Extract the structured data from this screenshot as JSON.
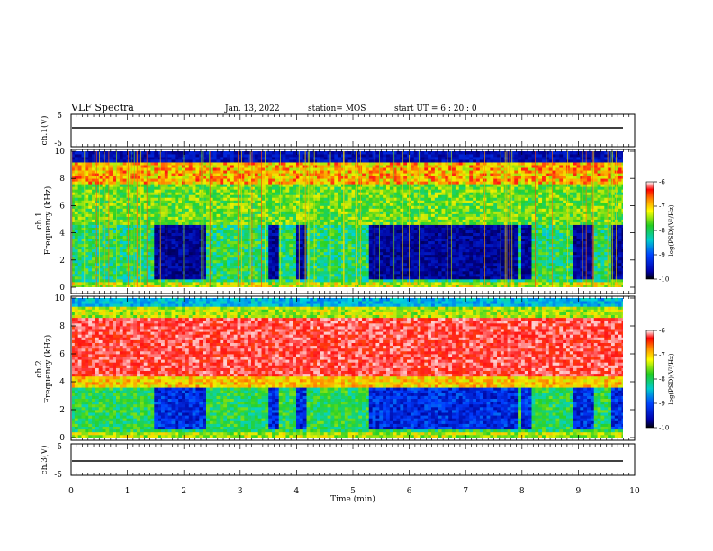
{
  "header": {
    "title": "VLF Spectra",
    "date": "Jan. 13, 2022",
    "station": "station= MOS",
    "start": "start UT =  6 : 20 : 0"
  },
  "chart_data": [
    {
      "type": "line",
      "name": "ch1-waveform",
      "ylabel": "ch.1(V)",
      "ylim": [
        -5,
        5
      ],
      "yticks": [
        "5",
        "-5"
      ],
      "x": [
        0,
        10
      ],
      "values": [
        0,
        0
      ]
    },
    {
      "type": "heatmap",
      "name": "ch1-spectrogram",
      "ylabel": "ch.1\nFrequency (kHz)",
      "ylim": [
        0,
        10
      ],
      "yticks": [
        "0",
        "2",
        "4",
        "6",
        "8",
        "10"
      ],
      "xlim": [
        0,
        9.83
      ],
      "colorbar": {
        "label": "log(PSD)(V²/Hz)",
        "range": [
          -10,
          -6
        ],
        "ticks": [
          "-6",
          "-7",
          "-8",
          "-9",
          "-10"
        ]
      },
      "quiet_intervals_min": [
        [
          1.5,
          2.4
        ],
        [
          3.5,
          3.7
        ],
        [
          4.0,
          4.2
        ],
        [
          5.3,
          7.9
        ],
        [
          8.0,
          8.2
        ],
        [
          8.9,
          9.3
        ],
        [
          9.6,
          9.8
        ]
      ],
      "quiet_band_khz": [
        0.5,
        4.5
      ]
    },
    {
      "type": "heatmap",
      "name": "ch2-spectrogram",
      "ylabel": "ch.2\nFrequency (kHz)",
      "ylim": [
        0,
        10
      ],
      "yticks": [
        "0",
        "2",
        "4",
        "6",
        "8",
        "10"
      ],
      "xlim": [
        0,
        9.83
      ],
      "colorbar": {
        "label": "log(PSD)(V²/Hz)",
        "range": [
          -10,
          -6
        ],
        "ticks": [
          "-6",
          "-7",
          "-8",
          "-9",
          "-10"
        ]
      },
      "intense_band_khz": [
        4.5,
        8.5
      ]
    },
    {
      "type": "line",
      "name": "ch3-waveform",
      "ylabel": "ch.3(V)",
      "ylim": [
        -5,
        5
      ],
      "yticks": [
        "5",
        "-5"
      ],
      "x": [
        0,
        10
      ],
      "values": [
        0,
        0
      ]
    }
  ],
  "xaxis": {
    "label": "Time (min)",
    "ticks": [
      "0",
      "1",
      "2",
      "3",
      "4",
      "5",
      "6",
      "7",
      "8",
      "9",
      "10"
    ],
    "xlim": [
      0,
      10
    ]
  },
  "colors": {
    "quiet": "#000088",
    "background_green": "#22cc22",
    "intense_red": "#ff2020"
  }
}
